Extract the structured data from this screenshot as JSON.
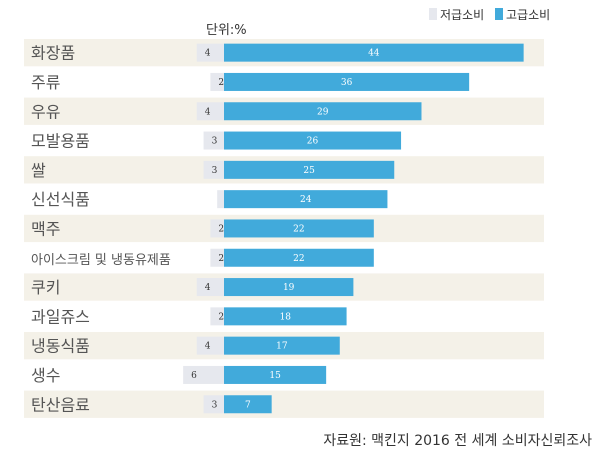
{
  "unit_label": "단위:%",
  "source": "자료원: 맥킨지 2016 전 세계 소비자신뢰조사",
  "colors": {
    "low": "#e6e8ee",
    "high": "#41aadb",
    "stripe": "#f4f1e8",
    "low_text": "#333333",
    "high_text": "#ffffff"
  },
  "chart_data": {
    "type": "bar",
    "orientation": "horizontal",
    "stacked_diverging": true,
    "categories": [
      "화장품",
      "주류",
      "우유",
      "모발용품",
      "쌀",
      "신선식품",
      "맥주",
      "아이스크림 및 냉동유제품",
      "쿠키",
      "과일쥬스",
      "냉동식품",
      "생수",
      "탄산음료"
    ],
    "series": [
      {
        "name": "저급소비",
        "values": [
          4,
          2,
          4,
          3,
          3,
          1,
          2,
          2,
          4,
          2,
          4,
          6,
          3
        ]
      },
      {
        "name": "고급소비",
        "values": [
          44,
          36,
          29,
          26,
          25,
          24,
          22,
          22,
          19,
          18,
          17,
          15,
          7
        ]
      }
    ],
    "legend_position": "top-right"
  }
}
